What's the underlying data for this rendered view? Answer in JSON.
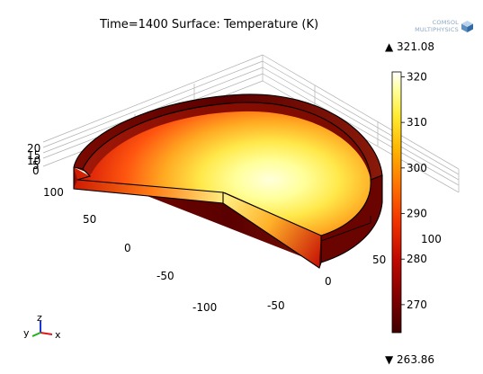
{
  "chart_data": {
    "type": "surface-3d",
    "title": "Time=1400 Surface: Temperature (K)",
    "xlabel": "x",
    "ylabel": "y",
    "zlabel": "z",
    "x_ticks": [
      100,
      50,
      0,
      -50,
      -100
    ],
    "y_ticks": [
      -50,
      0,
      50,
      100
    ],
    "z_ticks": [
      20,
      15,
      10,
      5,
      0
    ],
    "colorbar": {
      "ticks": [
        320,
        310,
        300,
        290,
        280,
        270
      ],
      "min": 263.86,
      "max": 321.08,
      "max_label": "▲ 321.08",
      "min_label": "▼ 263.86",
      "colormap": "heat"
    }
  },
  "logo": {
    "line1": "COMSOL",
    "line2": "MULTIPHYSICS"
  },
  "triad": {
    "x": "x",
    "y": "y",
    "z": "z"
  },
  "colors": {
    "accent": "#ffff30",
    "dark": "#5b0000",
    "mid": "#e02000",
    "hot": "#ffffd8"
  },
  "icons": {
    "logo": "comsol-cube-icon"
  }
}
